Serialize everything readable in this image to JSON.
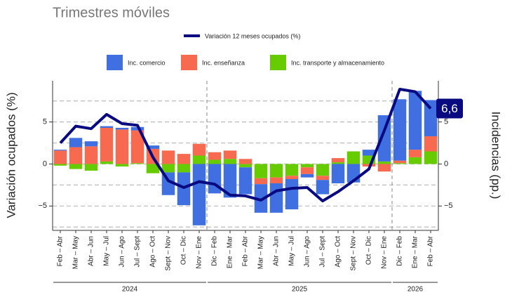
{
  "chart_data": {
    "type": "bar_line",
    "subtitle": "Trimestres móviles",
    "y_label": "Variación ocupados (%)",
    "y2_label": "Incidencias (pp.)",
    "groups": [
      {
        "label": "2024",
        "categories": [
          "Feb – Abr",
          "Mar – May",
          "Abr – Jun",
          "May – Jul",
          "Jun – Ago",
          "Jul – Sept",
          "Ago – Oct",
          "Sept – Nov",
          "Oct – Dic",
          "Nov – Ene"
        ]
      },
      {
        "label": "2025",
        "categories": [
          "Dic – Feb",
          "Ene – Mar",
          "Feb – Abr",
          "Mar – May",
          "Abr – Jun",
          "May – Jul",
          "Jun – Ago",
          "Jul – Sept",
          "Ago – Oct",
          "Sept – Nov",
          "Oct – Dic",
          "Nov – Ene"
        ]
      },
      {
        "label": "2026",
        "categories": [
          "Dic – Feb",
          "Ene – Mar",
          "Feb – Abr"
        ]
      }
    ],
    "series": [
      {
        "name": "Inc. comercio",
        "type": "bar",
        "axis": "y2",
        "color": "#3f6fe0",
        "values": [
          0.1,
          1.1,
          0.6,
          0.2,
          0.2,
          0.4,
          0.4,
          -2.7,
          -3.9,
          -7.3,
          -3.5,
          -4.0,
          -3.2,
          -3.4,
          -3.5,
          -3.6,
          -0.4,
          -1.7,
          -2.3,
          -2.2,
          0.7,
          5.5,
          7.3,
          7.0,
          4.3
        ]
      },
      {
        "name": "Inc. enseñanza",
        "type": "bar",
        "axis": "y2",
        "color": "#f86a50",
        "values": [
          1.6,
          2.0,
          2.1,
          4.0,
          4.1,
          3.9,
          1.8,
          1.6,
          1.2,
          1.4,
          0.9,
          1.0,
          0.6,
          -0.7,
          -0.7,
          -0.4,
          -0.8,
          -0.5,
          0.5,
          0.0,
          -0.3,
          -0.9,
          0.3,
          0.9,
          1.8
        ]
      },
      {
        "name": "Inc. transporte y almacenamiento",
        "type": "bar",
        "axis": "y2",
        "color": "#66cc00",
        "values": [
          -0.2,
          -0.6,
          -0.8,
          0.3,
          -0.3,
          0.1,
          -1.1,
          -1.0,
          -1.0,
          1.0,
          0.5,
          0.6,
          -0.4,
          -1.7,
          -1.6,
          -1.4,
          -0.4,
          -1.4,
          0.2,
          1.5,
          1.0,
          0.3,
          0.1,
          0.8,
          1.5
        ]
      },
      {
        "name": "Variación 12 meses ocupados (%)",
        "type": "line",
        "color": "#0a0a80",
        "values": [
          2.5,
          4.5,
          4.2,
          5.9,
          4.8,
          4.6,
          0.8,
          -2.0,
          -2.8,
          -2.1,
          -2.4,
          -3.7,
          -3.8,
          -4.3,
          -3.2,
          -2.9,
          -2.8,
          -4.4,
          -3.3,
          -2.0,
          -0.6,
          4.0,
          8.9,
          8.6,
          6.6
        ],
        "value_labels": [
          null,
          null,
          null,
          null,
          null,
          null,
          null,
          null,
          null,
          null,
          null,
          null,
          null,
          null,
          null,
          null,
          null,
          null,
          null,
          null,
          null,
          null,
          null,
          null,
          "6,6"
        ]
      }
    ],
    "ylim": [
      -7.9,
      9.9
    ],
    "yticks": [
      {
        "value": -5,
        "label": "−5"
      },
      0,
      5
    ],
    "y2lim": [
      -7.9,
      9.9
    ],
    "y2ticks": [
      {
        "value": -5,
        "label": "−5"
      },
      0,
      5
    ],
    "minor_yticks": [
      -7.5,
      -2.5,
      2.5,
      7.5
    ],
    "grid": true
  }
}
